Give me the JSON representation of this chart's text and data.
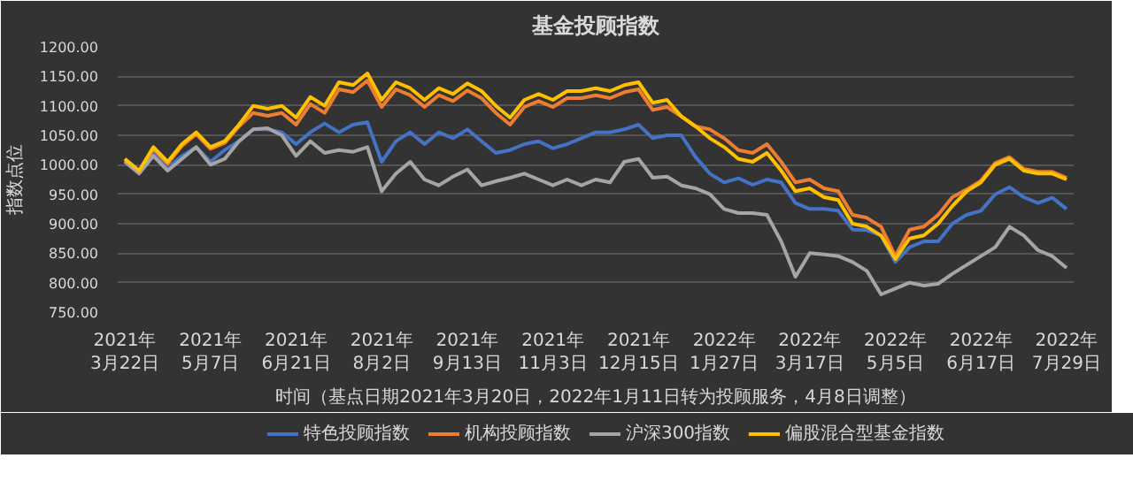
{
  "chart_data": {
    "type": "line",
    "title": "基金投顾指数",
    "xlabel": "时间（基点日期2021年3月20日，2022年1月11日转为投顾服务，4月8日调整）",
    "ylabel": "指数点位",
    "categories": [
      "2021年3月22日",
      null,
      null,
      null,
      null,
      null,
      "2021年5月7日",
      null,
      null,
      null,
      null,
      null,
      "2021年6月21日",
      null,
      null,
      null,
      null,
      null,
      "2021年8月2日",
      null,
      null,
      null,
      null,
      null,
      "2021年9月13日",
      null,
      null,
      null,
      null,
      null,
      "2021年11月3日",
      null,
      null,
      null,
      null,
      null,
      "2021年12月15日",
      null,
      null,
      null,
      null,
      null,
      "2022年1月27日",
      null,
      null,
      null,
      null,
      null,
      "2022年3月17日",
      null,
      null,
      null,
      null,
      null,
      "2022年5月5日",
      null,
      null,
      null,
      null,
      null,
      "2022年6月17日",
      null,
      null,
      null,
      null,
      null,
      "2022年7月29日"
    ],
    "ylim": [
      750,
      1200
    ],
    "yticks": [
      {
        "value": 750,
        "label": "750.00"
      },
      {
        "value": 800,
        "label": "800.00"
      },
      {
        "value": 850,
        "label": "850.00"
      },
      {
        "value": 900,
        "label": "900.00"
      },
      {
        "value": 950,
        "label": "950.00"
      },
      {
        "value": 1000,
        "label": "1000.00"
      },
      {
        "value": 1050,
        "label": "1050.00"
      },
      {
        "value": 1100,
        "label": "1100.00"
      },
      {
        "value": 1150,
        "label": "1150.00"
      },
      {
        "value": 1200,
        "label": "1200.00"
      }
    ],
    "grid": "y",
    "legend": "bottom",
    "marker": "none",
    "line_style": "solid",
    "series": [
      {
        "name": "特色投顾指数",
        "color": "#4472c4",
        "values": [
          1010,
          990,
          1020,
          995,
          1015,
          1030,
          1005,
          1025,
          1040,
          1060,
          1060,
          1055,
          1035,
          1055,
          1070,
          1055,
          1068,
          1072,
          1005,
          1040,
          1055,
          1035,
          1055,
          1045,
          1060,
          1040,
          1020,
          1025,
          1035,
          1040,
          1028,
          1035,
          1045,
          1055,
          1055,
          1060,
          1068,
          1045,
          1050,
          1050,
          1013,
          985,
          970,
          977,
          966,
          975,
          970,
          935,
          925,
          925,
          922,
          890,
          889,
          880,
          835,
          860,
          870,
          870,
          900,
          915,
          922,
          950,
          962,
          945,
          935,
          944,
          925
        ]
      },
      {
        "name": "机构投顾指数",
        "color": "#ed7d31",
        "values": [
          1007,
          987,
          1027,
          1002,
          1032,
          1052,
          1027,
          1037,
          1065,
          1088,
          1083,
          1088,
          1068,
          1103,
          1088,
          1128,
          1123,
          1143,
          1098,
          1128,
          1118,
          1098,
          1118,
          1108,
          1126,
          1113,
          1088,
          1068,
          1098,
          1108,
          1098,
          1113,
          1113,
          1118,
          1113,
          1123,
          1128,
          1093,
          1098,
          1082,
          1065,
          1060,
          1045,
          1025,
          1020,
          1035,
          1005,
          970,
          975,
          960,
          955,
          915,
          910,
          895,
          845,
          890,
          895,
          915,
          945,
          958,
          973,
          1003,
          1013,
          993,
          988,
          988,
          978
        ]
      },
      {
        "name": "沪深300指数",
        "color": "#a5a5a5",
        "values": [
          1005,
          985,
          1015,
          990,
          1010,
          1030,
          1000,
          1010,
          1040,
          1060,
          1062,
          1050,
          1015,
          1040,
          1020,
          1025,
          1022,
          1030,
          955,
          985,
          1005,
          975,
          965,
          980,
          992,
          965,
          972,
          978,
          985,
          975,
          965,
          975,
          965,
          975,
          970,
          1005,
          1010,
          978,
          980,
          965,
          960,
          950,
          925,
          918,
          918,
          915,
          870,
          810,
          850,
          848,
          845,
          835,
          820,
          780,
          790,
          800,
          795,
          798,
          815,
          830,
          845,
          860,
          895,
          880,
          855,
          845,
          825
        ]
      },
      {
        "name": "偏股混合型基金指数",
        "color": "#ffc000",
        "values": [
          1010,
          990,
          1030,
          1005,
          1035,
          1055,
          1030,
          1040,
          1068,
          1100,
          1095,
          1100,
          1080,
          1115,
          1100,
          1140,
          1135,
          1155,
          1110,
          1140,
          1130,
          1110,
          1130,
          1120,
          1138,
          1125,
          1100,
          1080,
          1110,
          1120,
          1110,
          1125,
          1125,
          1130,
          1125,
          1135,
          1140,
          1105,
          1110,
          1082,
          1065,
          1045,
          1030,
          1010,
          1005,
          1020,
          990,
          955,
          960,
          945,
          940,
          900,
          895,
          880,
          840,
          875,
          880,
          900,
          930,
          955,
          970,
          1000,
          1010,
          990,
          985,
          985,
          975
        ]
      }
    ]
  }
}
